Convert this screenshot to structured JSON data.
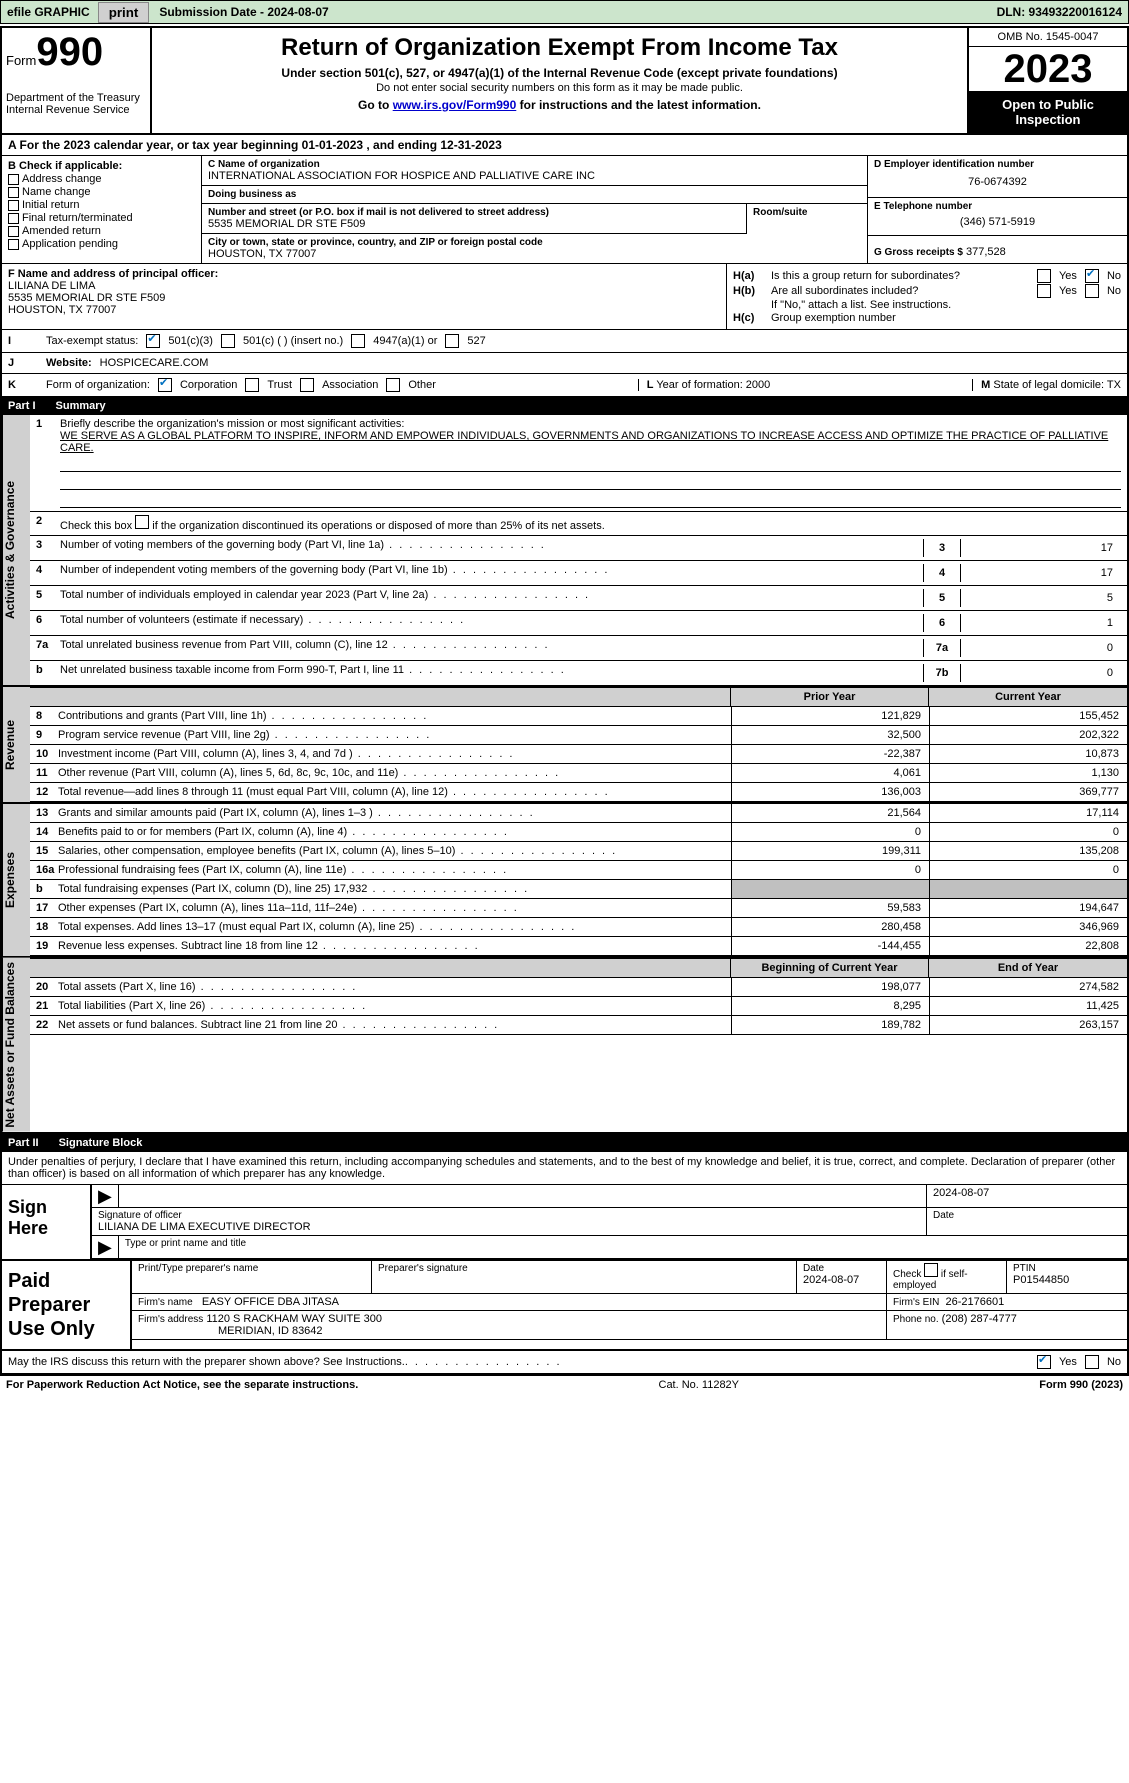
{
  "topbar": {
    "efile": "efile GRAPHIC",
    "print": "print",
    "submission": "Submission Date - 2024-08-07",
    "dln": "DLN: 93493220016124"
  },
  "header": {
    "form_word": "Form",
    "form_num": "990",
    "dept": "Department of the Treasury Internal Revenue Service",
    "title": "Return of Organization Exempt From Income Tax",
    "sub1": "Under section 501(c), 527, or 4947(a)(1) of the Internal Revenue Code (except private foundations)",
    "sub2": "Do not enter social security numbers on this form as it may be made public.",
    "sub3_pre": "Go to ",
    "sub3_link": "www.irs.gov/Form990",
    "sub3_post": " for instructions and the latest information.",
    "omb": "OMB No. 1545-0047",
    "year": "2023",
    "open_pub": "Open to Public Inspection"
  },
  "line_a": "A For the 2023 calendar year, or tax year beginning 01-01-2023   , and ending 12-31-2023",
  "col_b": {
    "hdr": "B Check if applicable:",
    "items": [
      "Address change",
      "Name change",
      "Initial return",
      "Final return/terminated",
      "Amended return",
      "Application pending"
    ]
  },
  "col_c": {
    "name_lbl": "C Name of organization",
    "name": "INTERNATIONAL ASSOCIATION FOR HOSPICE AND PALLIATIVE CARE INC",
    "dba_lbl": "Doing business as",
    "dba": "",
    "addr_lbl": "Number and street (or P.O. box if mail is not delivered to street address)",
    "room_lbl": "Room/suite",
    "addr": "5535 MEMORIAL DR STE F509",
    "city_lbl": "City or town, state or province, country, and ZIP or foreign postal code",
    "city": "HOUSTON, TX  77007"
  },
  "col_d": {
    "ein_lbl": "D Employer identification number",
    "ein": "76-0674392",
    "phone_lbl": "E Telephone number",
    "phone": "(346) 571-5919",
    "gross_lbl": "G Gross receipts $",
    "gross": "377,528"
  },
  "sec_f": {
    "lbl": "F  Name and address of principal officer:",
    "name": "LILIANA DE LIMA",
    "addr": "5535 MEMORIAL DR STE F509",
    "city": "HOUSTON, TX  77007"
  },
  "sec_h": {
    "a": "Is this a group return for subordinates?",
    "b": "Are all subordinates included?",
    "b_note": "If \"No,\" attach a list. See instructions.",
    "c": "Group exemption number",
    "yes": "Yes",
    "no": "No",
    "ha_lbl": "H(a)",
    "hb_lbl": "H(b)",
    "hc_lbl": "H(c)"
  },
  "sec_i": {
    "lbl": "Tax-exempt status:",
    "o1": "501(c)(3)",
    "o2": "501(c) (  ) (insert no.)",
    "o3": "4947(a)(1) or",
    "o4": "527",
    "I": "I"
  },
  "sec_j": {
    "lbl": "Website:",
    "val": "HOSPICECARE.COM",
    "J": "J"
  },
  "sec_k": {
    "K": "K",
    "lbl": "Form of organization:",
    "o1": "Corporation",
    "o2": "Trust",
    "o3": "Association",
    "o4": "Other",
    "L": "L",
    "l_txt": "Year of formation: 2000",
    "M": "M",
    "m_txt": "State of legal domicile: TX"
  },
  "part1": {
    "num": "Part I",
    "title": "Summary"
  },
  "vtabs": {
    "gov": "Activities & Governance",
    "rev": "Revenue",
    "exp": "Expenses",
    "net": "Net Assets or Fund Balances"
  },
  "gov": {
    "l1_lbl": "Briefly describe the organization's mission or most significant activities:",
    "l1_txt": "WE SERVE AS A GLOBAL PLATFORM TO INSPIRE, INFORM AND EMPOWER INDIVIDUALS, GOVERNMENTS AND ORGANIZATIONS TO INCREASE ACCESS AND OPTIMIZE THE PRACTICE OF PALLIATIVE CARE.",
    "l2": "Check this box        if the organization discontinued its operations or disposed of more than 25% of its net assets.",
    "rows": [
      {
        "n": "3",
        "t": "Number of voting members of the governing body (Part VI, line 1a)",
        "box": "3",
        "v": "17"
      },
      {
        "n": "4",
        "t": "Number of independent voting members of the governing body (Part VI, line 1b)",
        "box": "4",
        "v": "17"
      },
      {
        "n": "5",
        "t": "Total number of individuals employed in calendar year 2023 (Part V, line 2a)",
        "box": "5",
        "v": "5"
      },
      {
        "n": "6",
        "t": "Total number of volunteers (estimate if necessary)",
        "box": "6",
        "v": "1"
      },
      {
        "n": "7a",
        "t": "Total unrelated business revenue from Part VIII, column (C), line 12",
        "box": "7a",
        "v": "0"
      },
      {
        "n": "b",
        "t": "Net unrelated business taxable income from Form 990-T, Part I, line 11",
        "box": "7b",
        "v": "0"
      }
    ]
  },
  "cols_hdr": {
    "prior": "Prior Year",
    "current": "Current Year",
    "boy": "Beginning of Current Year",
    "eoy": "End of Year"
  },
  "rev_rows": [
    {
      "n": "8",
      "t": "Contributions and grants (Part VIII, line 1h)",
      "c1": "121,829",
      "c2": "155,452"
    },
    {
      "n": "9",
      "t": "Program service revenue (Part VIII, line 2g)",
      "c1": "32,500",
      "c2": "202,322"
    },
    {
      "n": "10",
      "t": "Investment income (Part VIII, column (A), lines 3, 4, and 7d )",
      "c1": "-22,387",
      "c2": "10,873"
    },
    {
      "n": "11",
      "t": "Other revenue (Part VIII, column (A), lines 5, 6d, 8c, 9c, 10c, and 11e)",
      "c1": "4,061",
      "c2": "1,130"
    },
    {
      "n": "12",
      "t": "Total revenue—add lines 8 through 11 (must equal Part VIII, column (A), line 12)",
      "c1": "136,003",
      "c2": "369,777"
    }
  ],
  "exp_rows": [
    {
      "n": "13",
      "t": "Grants and similar amounts paid (Part IX, column (A), lines 1–3 )",
      "c1": "21,564",
      "c2": "17,114"
    },
    {
      "n": "14",
      "t": "Benefits paid to or for members (Part IX, column (A), line 4)",
      "c1": "0",
      "c2": "0"
    },
    {
      "n": "15",
      "t": "Salaries, other compensation, employee benefits (Part IX, column (A), lines 5–10)",
      "c1": "199,311",
      "c2": "135,208"
    },
    {
      "n": "16a",
      "t": "Professional fundraising fees (Part IX, column (A), line 11e)",
      "c1": "0",
      "c2": "0"
    },
    {
      "n": "b",
      "t": "Total fundraising expenses (Part IX, column (D), line 25) 17,932",
      "c1": "",
      "c2": "",
      "grey": true
    },
    {
      "n": "17",
      "t": "Other expenses (Part IX, column (A), lines 11a–11d, 11f–24e)",
      "c1": "59,583",
      "c2": "194,647"
    },
    {
      "n": "18",
      "t": "Total expenses. Add lines 13–17 (must equal Part IX, column (A), line 25)",
      "c1": "280,458",
      "c2": "346,969"
    },
    {
      "n": "19",
      "t": "Revenue less expenses. Subtract line 18 from line 12",
      "c1": "-144,455",
      "c2": "22,808"
    }
  ],
  "net_rows": [
    {
      "n": "20",
      "t": "Total assets (Part X, line 16)",
      "c1": "198,077",
      "c2": "274,582"
    },
    {
      "n": "21",
      "t": "Total liabilities (Part X, line 26)",
      "c1": "8,295",
      "c2": "11,425"
    },
    {
      "n": "22",
      "t": "Net assets or fund balances. Subtract line 21 from line 20",
      "c1": "189,782",
      "c2": "263,157"
    }
  ],
  "part2": {
    "num": "Part II",
    "title": "Signature Block"
  },
  "sig_intro": "Under penalties of perjury, I declare that I have examined this return, including accompanying schedules and statements, and to the best of my knowledge and belief, it is true, correct, and complete. Declaration of preparer (other than officer) is based on all information of which preparer has any knowledge.",
  "sign": {
    "here": "Sign Here",
    "sig_lbl": "Signature of officer",
    "name": "LILIANA DE LIMA  EXECUTIVE DIRECTOR",
    "type_lbl": "Type or print name and title",
    "date_lbl": "Date",
    "date": "2024-08-07"
  },
  "paid": {
    "title": "Paid Preparer Use Only",
    "prep_name_lbl": "Print/Type preparer's name",
    "prep_sig_lbl": "Preparer's signature",
    "date_lbl": "Date",
    "date": "2024-08-07",
    "check_lbl": "Check        if self-employed",
    "ptin_lbl": "PTIN",
    "ptin": "P01544850",
    "firm_name_lbl": "Firm's name",
    "firm_name": "EASY OFFICE DBA JITASA",
    "firm_ein_lbl": "Firm's EIN",
    "firm_ein": "26-2176601",
    "firm_addr_lbl": "Firm's address",
    "firm_addr": "1120 S RACKHAM WAY SUITE 300",
    "firm_city": "MERIDIAN, ID  83642",
    "phone_lbl": "Phone no.",
    "phone": "(208) 287-4777"
  },
  "discuss": {
    "txt": "May the IRS discuss this return with the preparer shown above? See Instructions.",
    "yes": "Yes",
    "no": "No"
  },
  "footer": {
    "left": "For Paperwork Reduction Act Notice, see the separate instructions.",
    "mid": "Cat. No. 11282Y",
    "right": "Form 990 (2023)"
  }
}
